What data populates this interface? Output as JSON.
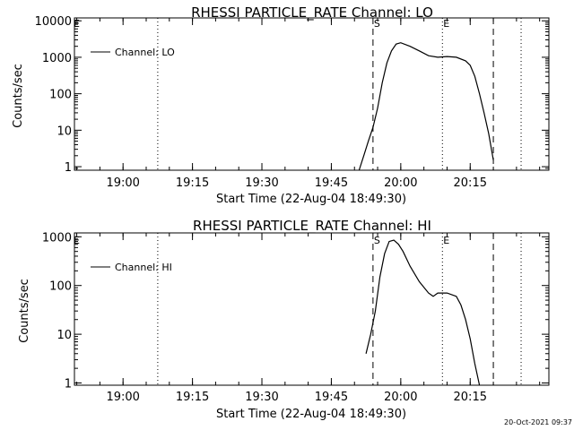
{
  "colors": {
    "background": "#ffffff",
    "foreground": "#000000"
  },
  "footer": {
    "timestamp": "20-Oct-2021 09:37"
  },
  "chart_data": [
    {
      "type": "line",
      "title": "RHESSI PARTICLE_RATE Channel: LO",
      "xlabel": "Start Time (22-Aug-04 18:49:30)",
      "ylabel": "Counts/sec",
      "y_scale": "log",
      "ylim": [
        0.8,
        12000
      ],
      "xlim": [
        "18:49:30",
        "20:32:00"
      ],
      "x_ticks": [
        {
          "t": "19:00",
          "label": "19:00"
        },
        {
          "t": "19:15",
          "label": "19:15"
        },
        {
          "t": "19:30",
          "label": "19:30"
        },
        {
          "t": "19:45",
          "label": "19:45"
        },
        {
          "t": "20:00",
          "label": "20:00"
        },
        {
          "t": "20:15",
          "label": "20:15"
        }
      ],
      "y_ticks": [
        {
          "v": 1,
          "label": "1"
        },
        {
          "v": 10,
          "label": "10"
        },
        {
          "v": 100,
          "label": "100"
        },
        {
          "v": 1000,
          "label": "1000"
        },
        {
          "v": 10000,
          "label": "10000"
        }
      ],
      "legend": {
        "label": "Channel: LO",
        "position": "top-left"
      },
      "markers": [
        {
          "t": "19:07:30",
          "style": "dotted",
          "label": ""
        },
        {
          "t": "19:54:00",
          "style": "dashed",
          "label": "S"
        },
        {
          "t": "20:09:00",
          "style": "dotted",
          "label": "E"
        },
        {
          "t": "20:20:00",
          "style": "dashed",
          "label": ""
        },
        {
          "t": "20:26:00",
          "style": "dotted",
          "label": ""
        }
      ],
      "edge_label": "E",
      "series": [
        {
          "name": "Channel: LO",
          "x": [
            "19:51:00",
            "19:52:00",
            "19:53:00",
            "19:54:00",
            "19:55:00",
            "19:56:00",
            "19:57:00",
            "19:58:00",
            "19:59:00",
            "20:00:00",
            "20:02:00",
            "20:04:00",
            "20:06:00",
            "20:08:00",
            "20:10:00",
            "20:12:00",
            "20:14:00",
            "20:15:00",
            "20:16:00",
            "20:17:00",
            "20:18:00",
            "20:19:00",
            "20:20:00"
          ],
          "y": [
            0.8,
            2,
            5,
            12,
            40,
            200,
            700,
            1500,
            2300,
            2500,
            2000,
            1500,
            1100,
            1000,
            1050,
            1000,
            800,
            600,
            300,
            100,
            30,
            8,
            1.5
          ]
        }
      ]
    },
    {
      "type": "line",
      "title": "RHESSI PARTICLE_RATE Channel: HI",
      "xlabel": "Start Time (22-Aug-04 18:49:30)",
      "ylabel": "Counts/sec",
      "y_scale": "log",
      "ylim": [
        0.9,
        1200
      ],
      "xlim": [
        "18:49:30",
        "20:32:00"
      ],
      "x_ticks": [
        {
          "t": "19:00",
          "label": "19:00"
        },
        {
          "t": "19:15",
          "label": "19:15"
        },
        {
          "t": "19:30",
          "label": "19:30"
        },
        {
          "t": "19:45",
          "label": "19:45"
        },
        {
          "t": "20:00",
          "label": "20:00"
        },
        {
          "t": "20:15",
          "label": "20:15"
        }
      ],
      "y_ticks": [
        {
          "v": 1,
          "label": "1"
        },
        {
          "v": 10,
          "label": "10"
        },
        {
          "v": 100,
          "label": "100"
        },
        {
          "v": 1000,
          "label": "1000"
        }
      ],
      "legend": {
        "label": "Channel: HI",
        "position": "top-left"
      },
      "markers": [
        {
          "t": "19:07:30",
          "style": "dotted",
          "label": ""
        },
        {
          "t": "19:54:00",
          "style": "dashed",
          "label": "S"
        },
        {
          "t": "20:09:00",
          "style": "dotted",
          "label": "E"
        },
        {
          "t": "20:20:00",
          "style": "dashed",
          "label": ""
        },
        {
          "t": "20:26:00",
          "style": "dotted",
          "label": ""
        }
      ],
      "edge_label": "E",
      "series": [
        {
          "name": "Channel: HI",
          "x": [
            "19:52:30",
            "19:53:30",
            "19:54:30",
            "19:55:30",
            "19:56:30",
            "19:57:30",
            "19:58:30",
            "19:59:30",
            "20:00:30",
            "20:02:00",
            "20:04:00",
            "20:06:00",
            "20:07:00",
            "20:08:00",
            "20:10:00",
            "20:12:00",
            "20:13:00",
            "20:14:00",
            "20:15:00",
            "20:16:00",
            "20:17:00"
          ],
          "y": [
            4,
            10,
            30,
            150,
            450,
            800,
            850,
            700,
            500,
            250,
            120,
            70,
            60,
            70,
            70,
            60,
            40,
            20,
            8,
            2.5,
            0.9
          ]
        }
      ]
    }
  ]
}
